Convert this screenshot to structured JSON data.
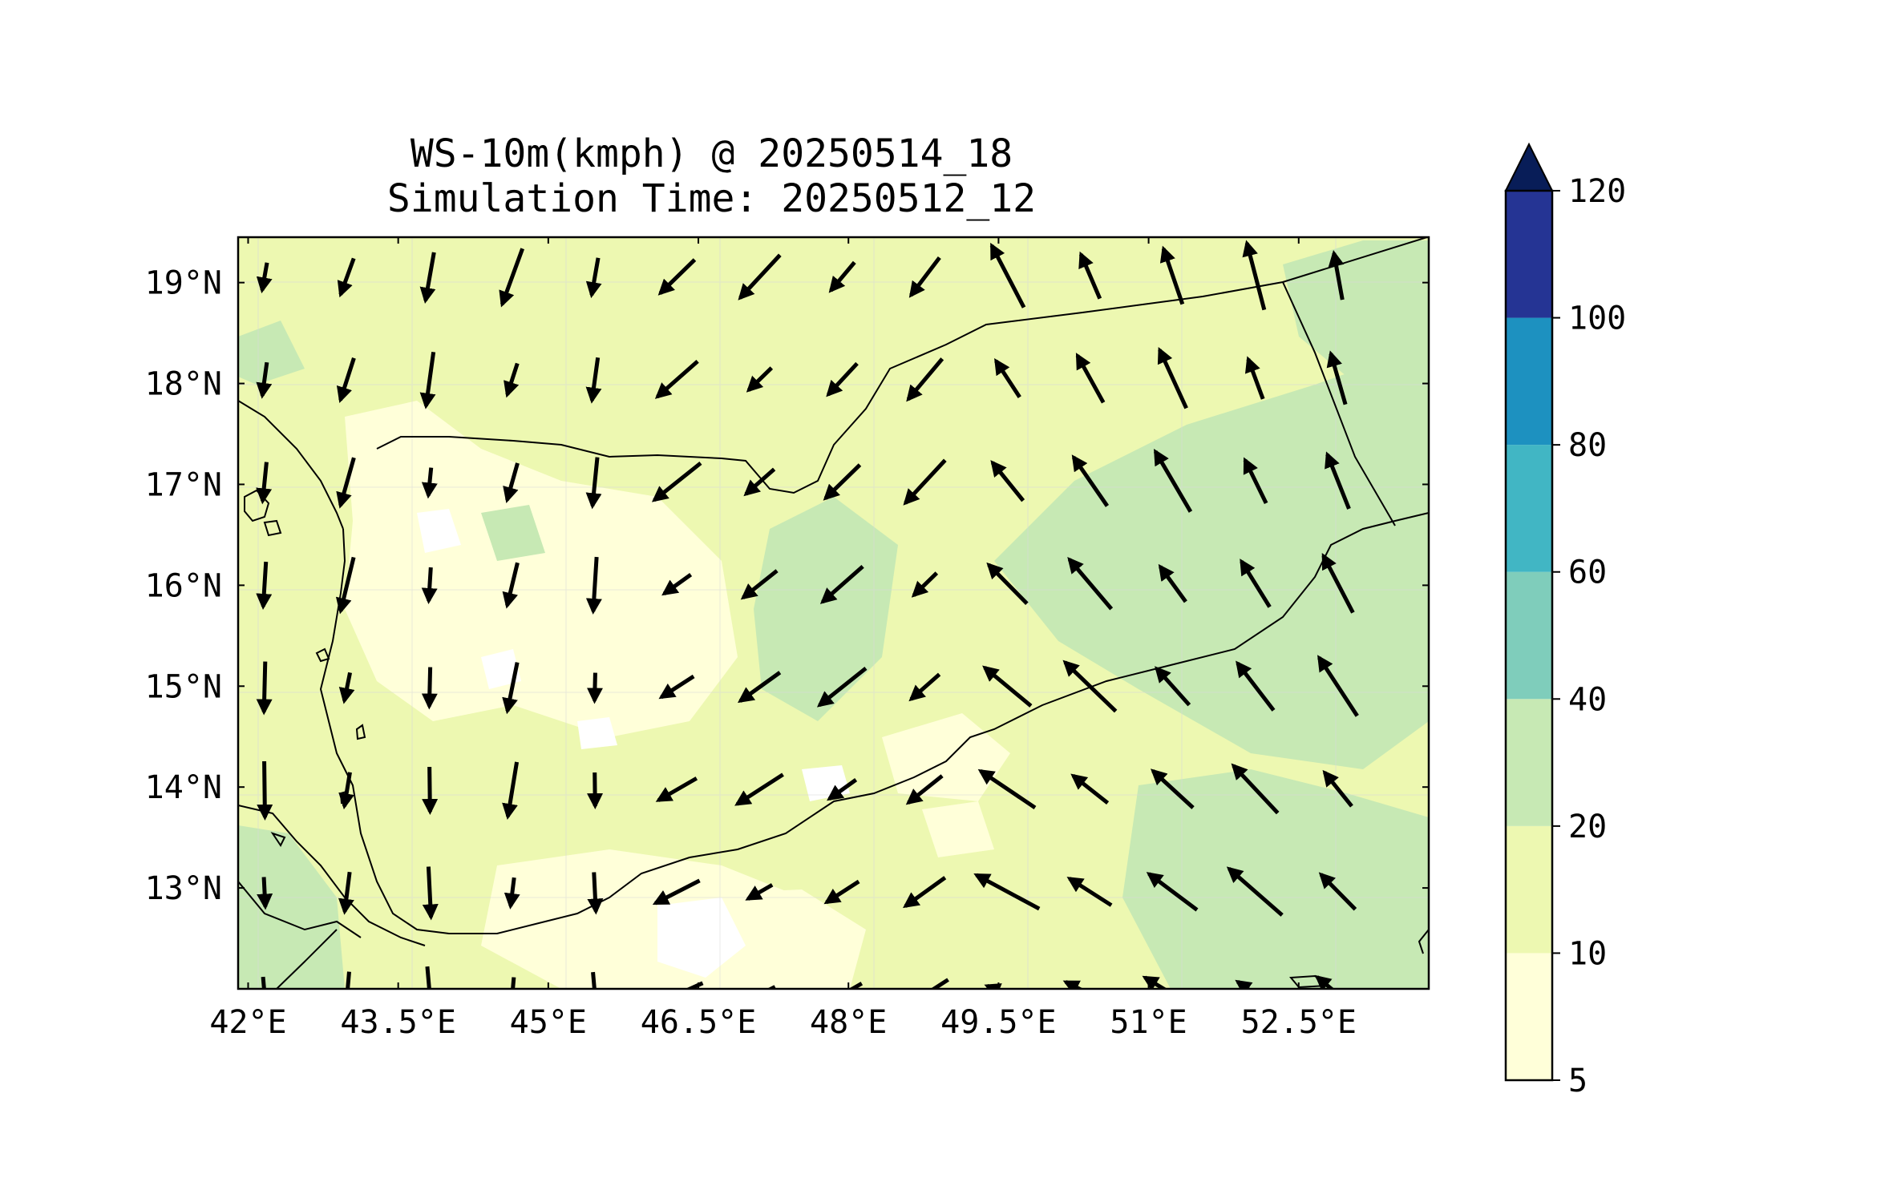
{
  "title": "WS-10m(kmph) @ 20250514_18",
  "subtitle": "Simulation Time: 20250512_12",
  "x_axis": {
    "ticks": [
      "42°E",
      "43.5°E",
      "45°E",
      "46.5°E",
      "48°E",
      "49.5°E",
      "51°E",
      "52.5°E"
    ],
    "values": [
      42.0,
      43.5,
      45.0,
      46.5,
      48.0,
      49.5,
      51.0,
      52.5
    ],
    "range": [
      41.9,
      53.8
    ]
  },
  "y_axis": {
    "ticks": [
      "19°N",
      "18°N",
      "17°N",
      "16°N",
      "15°N",
      "14°N",
      "13°N"
    ],
    "values": [
      19,
      18,
      17,
      16,
      15,
      14,
      13
    ],
    "range": [
      12.0,
      19.45
    ]
  },
  "colorbar": {
    "levels": [
      "5",
      "10",
      "20",
      "40",
      "60",
      "80",
      "100",
      "120"
    ],
    "colors": [
      "#ffffd9",
      "#edf8b1",
      "#c7e9b4",
      "#7fcdbb",
      "#41b6c4",
      "#1d91c0",
      "#253494"
    ],
    "extend_color": "#081d58"
  },
  "colors": {
    "background_field": "#edf8b1",
    "light_field": "#ffffd9",
    "moderate_field": "#c7e9b4",
    "coastline": "#000000",
    "arrows": "#000000"
  }
}
